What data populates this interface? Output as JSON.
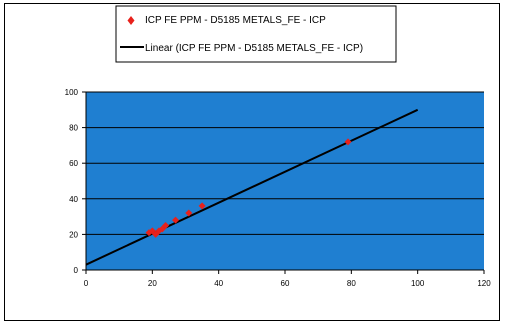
{
  "colors": {
    "plot_background": "#1f7fd1",
    "gridline": "#000000",
    "point": "#e8211b",
    "trendline": "#000000",
    "frame": "#000000"
  },
  "chart_data": {
    "type": "scatter",
    "title": "",
    "xlabel": "",
    "ylabel": "",
    "xlim": [
      0,
      120
    ],
    "ylim": [
      0,
      100
    ],
    "x_ticks": [
      "0",
      "20",
      "40",
      "60",
      "80",
      "100",
      "120"
    ],
    "y_ticks": [
      "0",
      "20",
      "40",
      "60",
      "80",
      "100"
    ],
    "grid": "horizontal",
    "legend_position": "top",
    "series": [
      {
        "name": "ICP FE PPM - D5185 METALS_FE - ICP",
        "marker": "diamond",
        "x": [
          19,
          20,
          21,
          22,
          23,
          24,
          27,
          31,
          35,
          79
        ],
        "y": [
          21,
          22,
          20,
          22,
          23,
          25,
          28,
          32,
          36,
          72
        ]
      },
      {
        "name": "Linear (ICP FE PPM - D5185 METALS_FE - ICP)",
        "type": "line",
        "x": [
          0,
          100
        ],
        "y": [
          3,
          90
        ]
      }
    ]
  }
}
